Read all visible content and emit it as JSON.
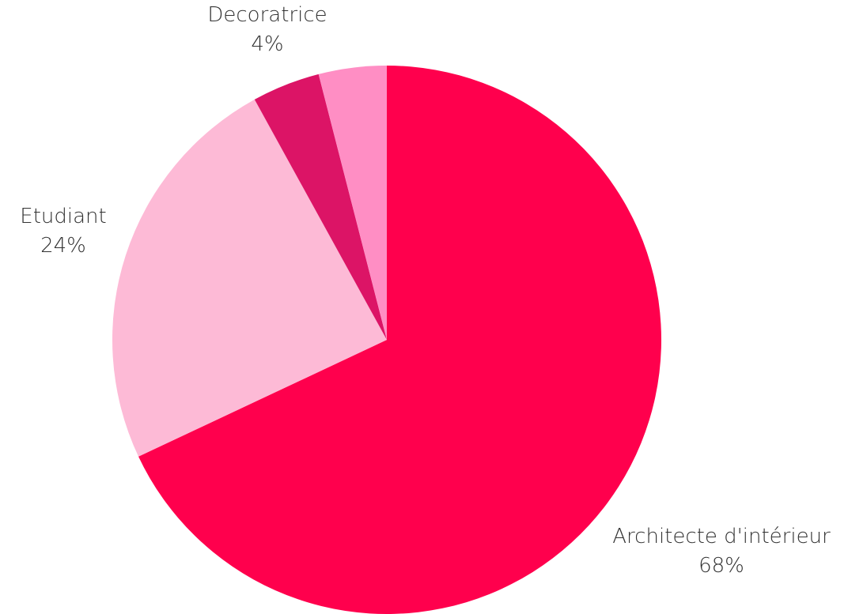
{
  "chart_data": {
    "type": "pie",
    "slices": [
      {
        "label": "Architecte d'intérieur",
        "value": 68,
        "value_label": "68%",
        "color": "#FF004D"
      },
      {
        "label": "Etudiant",
        "value": 24,
        "value_label": "24%",
        "color": "#FDBAD6"
      },
      {
        "label": "Decoratrice",
        "value": 4,
        "value_label": "4%",
        "color": "#DC1466"
      },
      {
        "label": "",
        "value": 4,
        "value_label": "",
        "color": "#FF8EC4"
      }
    ],
    "start": "top",
    "direction": "clockwise",
    "legend": "none"
  }
}
